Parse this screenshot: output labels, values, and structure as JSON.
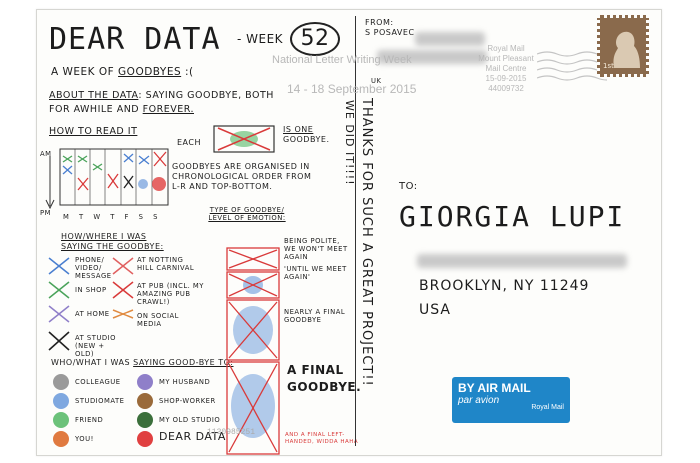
{
  "header": {
    "title": "DEAR DATA",
    "week_label": "- WEEK",
    "week_number": "52",
    "subtitle_prefix": "A WEEK OF",
    "subtitle_word": "GOODBYES",
    "subtitle_face": ":("
  },
  "about": {
    "label": "ABOUT THE DATA",
    "text_1": ": SAYING GOODBYE, BOTH",
    "text_2": "FOR AWHILE AND",
    "forever": "FOREVER."
  },
  "how_to_read": {
    "label": "HOW TO READ IT",
    "each": "EACH",
    "is_one": "IS ONE",
    "goodbye": "GOODBYE.",
    "order_1": "GOODBYES ARE ORGANISED IN",
    "order_2": "CHRONOLOGICAL ORDER FROM",
    "order_3": "L-R AND TOP-BOTTOM.",
    "am": "AM",
    "pm": "PM",
    "days": "M T W T F S S"
  },
  "type_legend": {
    "heading_1": "TYPE OF GOODBYE/",
    "heading_2": "LEVEL OF EMOTION:",
    "items": [
      "BEING POLITE, WE WON'T MEET AGAIN",
      "'UNTIL WE MEET AGAIN'",
      "NEARLY A FINAL GOODBYE",
      "A FINAL GOODBYE."
    ],
    "footnote": "AND A FINAL LEFT-HANDED, WIDDA HAHA"
  },
  "where_legend": {
    "heading_1": "HOW/WHERE I WAS",
    "heading_2": "SAYING THE GOODBYE:",
    "items": [
      "PHONE/ VIDEO/ MESSAGE",
      "AT NOTTING HILL CARNIVAL",
      "IN SHOP",
      "AT PUB (INCL. MY AMAZING PUB CRAWL!)",
      "AT HOME",
      "ON SOCIAL MEDIA",
      "AT STUDIO (NEW + OLD)"
    ]
  },
  "who_legend": {
    "heading_1": "WHO/WHAT I WAS",
    "heading_2": "SAYING GOOD-BYE TO:",
    "items": [
      {
        "label": "COLLEAGUE",
        "color": "#9a9a9a"
      },
      {
        "label": "MY HUSBAND",
        "color": "#8f7fc9"
      },
      {
        "label": "STUDIOMATE",
        "color": "#7fa8e0"
      },
      {
        "label": "SHOP-WORKER",
        "color": "#9a6a3a"
      },
      {
        "label": "FRIEND",
        "color": "#6cc27a"
      },
      {
        "label": "MY OLD STUDIO",
        "color": "#3b6f3b"
      },
      {
        "label": "YOU!",
        "color": "#e07a40"
      },
      {
        "label": "DEAR DATA",
        "color": "#e04040"
      }
    ]
  },
  "thanks": {
    "line_1": "THANKS FOR SUCH A GREAT PROJECT!!",
    "line_2": "WE DID IT!!!!"
  },
  "sender": {
    "from_label": "FROM:",
    "name": "S POSAVEC",
    "country": "UK"
  },
  "postmark": {
    "line_1": "National Letter Writing Week",
    "line_2": "14 - 18 September 2015",
    "royal": "Royal Mail",
    "centre_1": "Mount Pleasant",
    "centre_2": "Mail Centre",
    "date": "15-09-2015",
    "code": "44009732",
    "stamp_value": "1st"
  },
  "recipient": {
    "to_label": "TO:",
    "name": "GIORGIA LUPI",
    "city": "BROOKLYN, NY 11249",
    "country": "USA"
  },
  "airmail": {
    "line_1": "BY AIR MAIL",
    "line_2": "par avion",
    "brand": "Royal Mail"
  },
  "barcode": "1130985251",
  "colors": {
    "mark_red": "#d93a3a",
    "mark_green": "#4aa35a",
    "mark_blue": "#4a7fd0",
    "airmail_blue": "#1f86c8"
  }
}
